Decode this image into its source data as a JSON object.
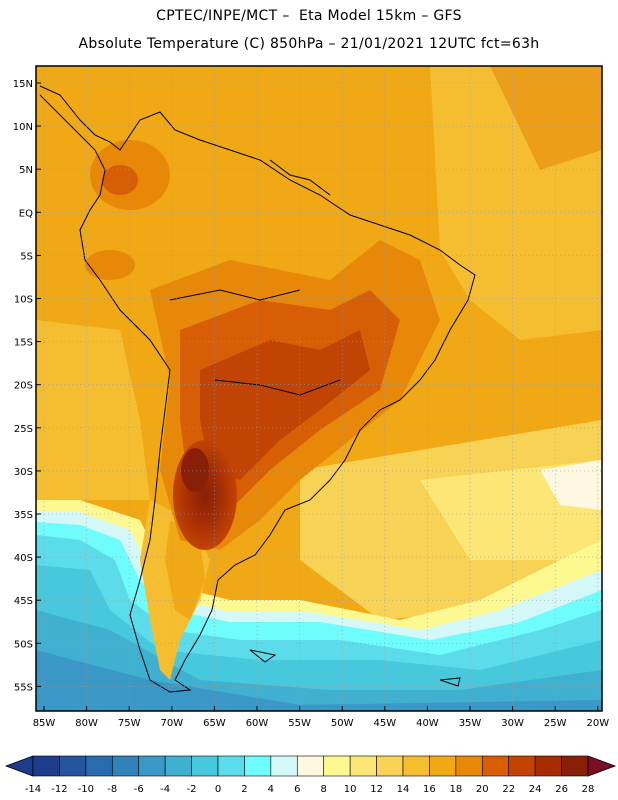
{
  "header": {
    "line1": "CPTEC/INPE/MCT –  Eta Model 15km – GFS",
    "line2": "Absolute Temperature (C) 850hPa – 21/01/2021 12UTC fct=63h"
  },
  "map": {
    "lat_labels": [
      "15N",
      "10N",
      "5N",
      "EQ",
      "5S",
      "10S",
      "15S",
      "20S",
      "25S",
      "30S",
      "35S",
      "40S",
      "45S",
      "50S",
      "55S"
    ],
    "lon_labels": [
      "85W",
      "80W",
      "75W",
      "70W",
      "65W",
      "60W",
      "55W",
      "50W",
      "45W",
      "40W",
      "35W",
      "30W",
      "25W",
      "20W"
    ]
  },
  "legend": {
    "labels": [
      "-14",
      "-12",
      "-10",
      "-8",
      "-6",
      "-4",
      "-2",
      "0",
      "2",
      "4",
      "6",
      "8",
      "10",
      "12",
      "14",
      "16",
      "18",
      "20",
      "22",
      "24",
      "26",
      "28"
    ],
    "colors": [
      "#1e3c8c",
      "#24549e",
      "#2a6aae",
      "#3282ba",
      "#3a98c6",
      "#3fb0d0",
      "#48c8dc",
      "#5cdcea",
      "#6efcfc",
      "#d4f8f8",
      "#fef8e0",
      "#fef890",
      "#fce676",
      "#f8d254",
      "#f4be30",
      "#f0a814",
      "#e88808",
      "#d85e06",
      "#c24404",
      "#a62c04",
      "#882008"
    ]
  }
}
